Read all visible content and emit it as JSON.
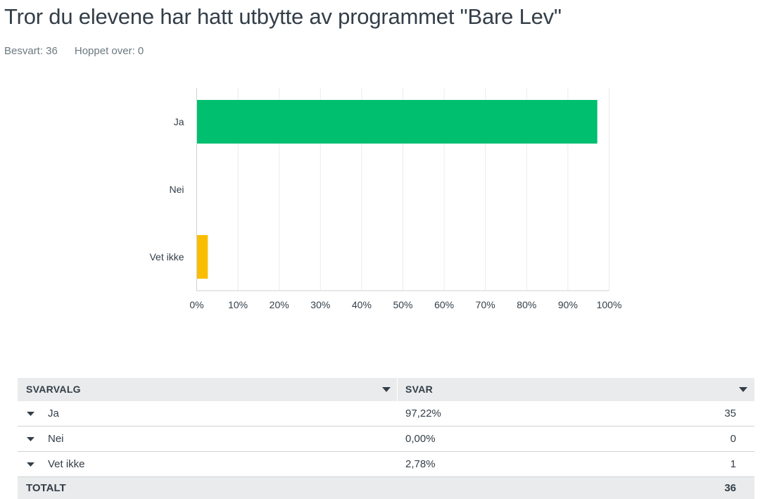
{
  "question": {
    "title": "Tror du elevene har hatt utbytte av programmet \"Bare Lev\"",
    "answered_label": "Besvart: 36",
    "skipped_label": "Hoppet over: 0"
  },
  "chart_data": {
    "type": "bar",
    "orientation": "horizontal",
    "categories": [
      "Ja",
      "Nei",
      "Vet ikke"
    ],
    "values": [
      97.22,
      0.0,
      2.78
    ],
    "colors": [
      "#00bf6f",
      "#f05b24",
      "#f9be00"
    ],
    "xlim": [
      0,
      100
    ],
    "xticks": [
      "0%",
      "10%",
      "20%",
      "30%",
      "40%",
      "50%",
      "60%",
      "70%",
      "80%",
      "90%",
      "100%"
    ],
    "grid": true,
    "gridColor": "#ebebeb"
  },
  "table": {
    "headers": {
      "choice": "SVARVALG",
      "responses": "SVAR"
    },
    "rows": [
      {
        "label": "Ja",
        "percent": "97,22%",
        "count": "35"
      },
      {
        "label": "Nei",
        "percent": "0,00%",
        "count": "0"
      },
      {
        "label": "Vet ikke",
        "percent": "2,78%",
        "count": "1"
      }
    ],
    "total": {
      "label": "TOTALT",
      "count": "36"
    }
  }
}
